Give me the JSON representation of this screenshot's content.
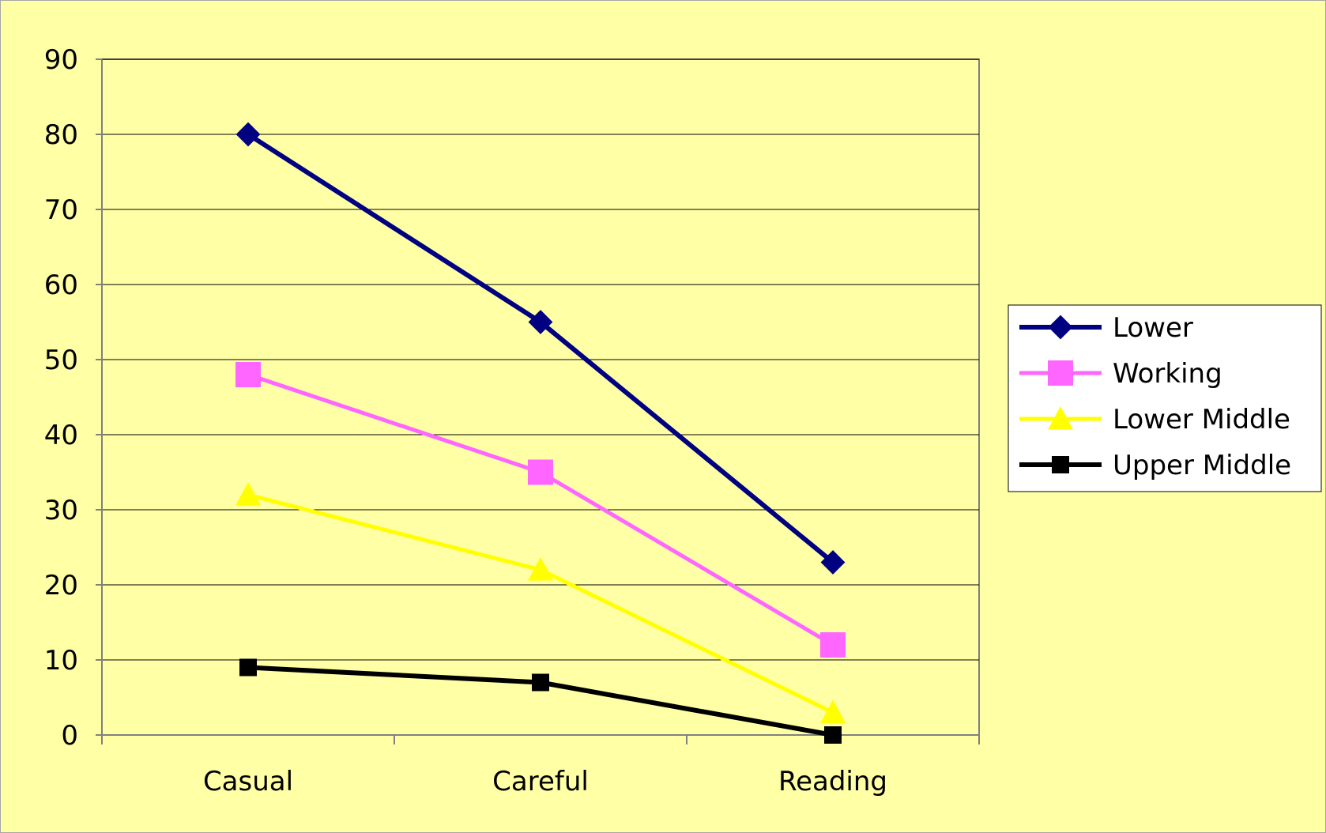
{
  "chart_data": {
    "type": "line",
    "categories": [
      "Casual",
      "Careful",
      "Reading"
    ],
    "ylim": [
      0,
      90
    ],
    "yticks": [
      0,
      10,
      20,
      30,
      40,
      50,
      60,
      70,
      80,
      90
    ],
    "grid": true,
    "legend_position": "right",
    "series": [
      {
        "name": "Lower",
        "values": [
          80,
          55,
          23
        ],
        "color": "#000080",
        "marker": "diamond"
      },
      {
        "name": "Working",
        "values": [
          48,
          35,
          12
        ],
        "color": "#ff66ff",
        "marker": "square"
      },
      {
        "name": "Lower Middle",
        "values": [
          32,
          22,
          3
        ],
        "color": "#ffff00",
        "marker": "triangle"
      },
      {
        "name": "Upper Middle",
        "values": [
          9,
          7,
          0
        ],
        "color": "#000000",
        "marker": "square"
      }
    ],
    "colors": {
      "chart_background": "#ffffa6",
      "plot_background": "#ffffa6",
      "gridline": "#000000",
      "axis": "#808080"
    }
  }
}
